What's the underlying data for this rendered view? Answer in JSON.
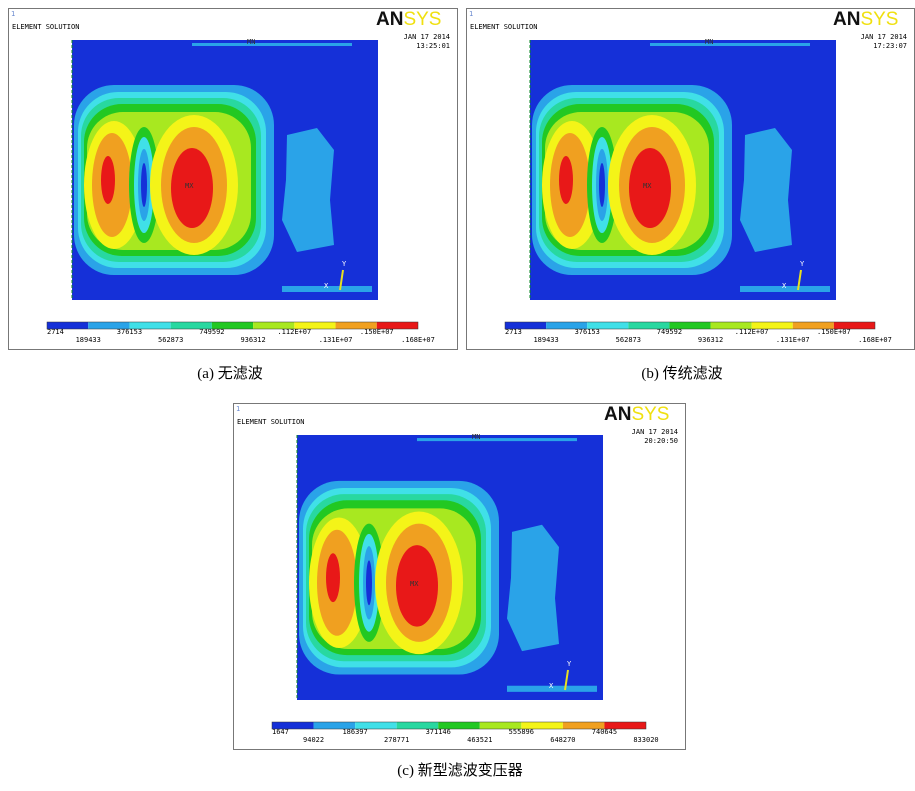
{
  "panels": [
    {
      "corner_index": "1",
      "header": "ELEMENT SOLUTION",
      "logo_left": "AN",
      "logo_right": "SYS",
      "date": "JAN 17 2014",
      "time": "13:25:01",
      "plot_labels": [
        "MN",
        "MX"
      ],
      "triad": [
        "X",
        "Y"
      ],
      "colorbar_labels": [
        "2714",
        "189433",
        "376153",
        "562873",
        "749592",
        "936312",
        ".112E+07",
        ".131E+07",
        ".150E+07",
        ".168E+07"
      ],
      "caption": "(a)  无滤波"
    },
    {
      "corner_index": "1",
      "header": "ELEMENT SOLUTION",
      "logo_left": "AN",
      "logo_right": "SYS",
      "date": "JAN 17 2014",
      "time": "17:23:07",
      "plot_labels": [
        "MN",
        "MX"
      ],
      "triad": [
        "X",
        "Y"
      ],
      "colorbar_labels": [
        "2713",
        "189433",
        "376153",
        "562873",
        "749592",
        "936312",
        ".112E+07",
        ".131E+07",
        ".150E+07",
        ".168E+07"
      ],
      "caption": "(b)  传统滤波"
    },
    {
      "corner_index": "1",
      "header": "ELEMENT SOLUTION",
      "logo_left": "AN",
      "logo_right": "SYS",
      "date": "JAN 17 2014",
      "time": "20:20:50",
      "plot_labels": [
        "MN",
        "MX"
      ],
      "triad": [
        "X",
        "Y"
      ],
      "colorbar_labels": [
        "1647",
        "94022",
        "186397",
        "278771",
        "371146",
        "463521",
        "555896",
        "648270",
        "740645",
        "833020"
      ],
      "caption": "(c)  新型滤波变压器"
    }
  ]
}
